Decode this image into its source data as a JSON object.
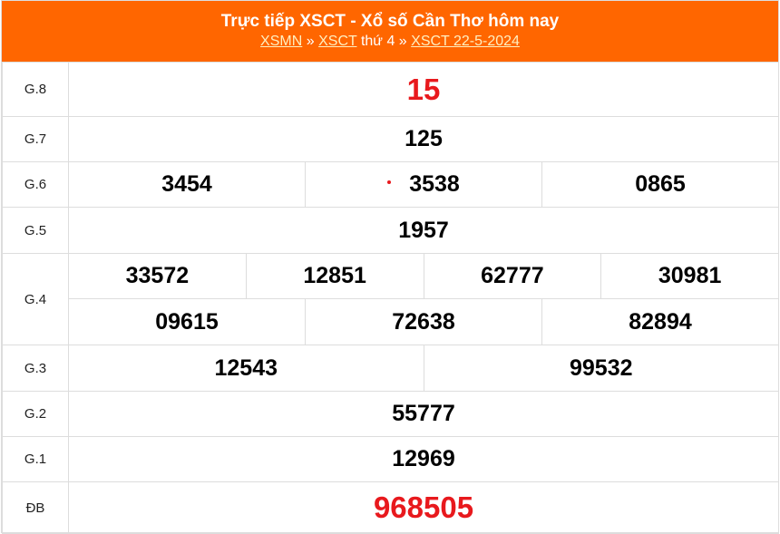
{
  "header": {
    "title": "Trực tiếp XSCT - Xổ số Cần Thơ hôm nay",
    "links": [
      "XSMN",
      "XSCT",
      "XSCT 22-5-2024"
    ],
    "sep": "»",
    "day": "thứ 4"
  },
  "prizes": [
    {
      "label": "G.8",
      "numbers": [
        "15"
      ]
    },
    {
      "label": "G.7",
      "numbers": [
        "125"
      ]
    },
    {
      "label": "G.6",
      "numbers": [
        "3454",
        "3538",
        "0865"
      ]
    },
    {
      "label": "G.5",
      "numbers": [
        "1957"
      ]
    },
    {
      "label": "G.4",
      "numbers": [
        "33572",
        "12851",
        "62777",
        "30981",
        "09615",
        "72638",
        "82894"
      ]
    },
    {
      "label": "G.3",
      "numbers": [
        "12543",
        "99532"
      ]
    },
    {
      "label": "G.2",
      "numbers": [
        "55777"
      ]
    },
    {
      "label": "G.1",
      "numbers": [
        "12969"
      ]
    },
    {
      "label": "ĐB",
      "numbers": [
        "968505"
      ]
    }
  ],
  "colors": {
    "header_bg": "#ff6600",
    "highlight": "#e8191d"
  }
}
